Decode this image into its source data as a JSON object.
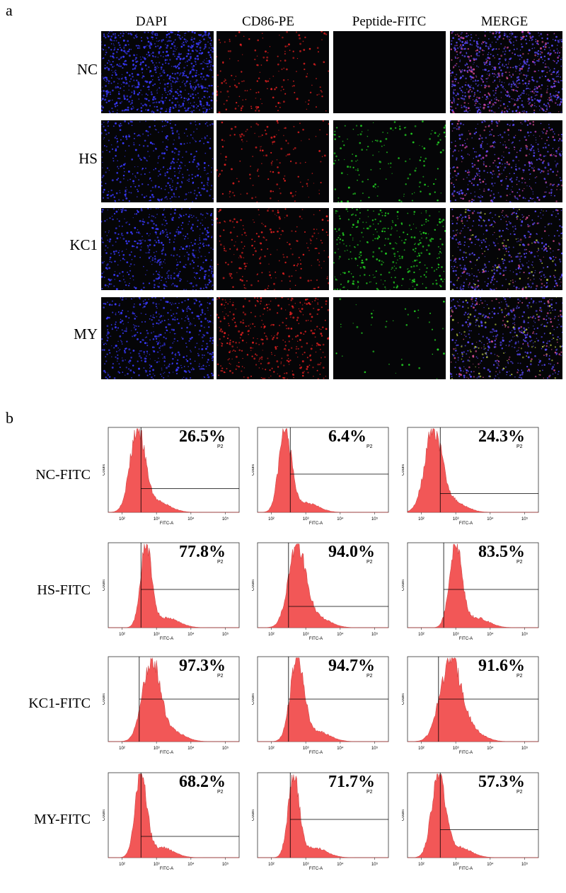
{
  "panel_a": {
    "letter": "a",
    "columns": [
      "DAPI",
      "CD86-PE",
      "Peptide-FITC",
      "MERGE"
    ],
    "rows": [
      "NC",
      "HS",
      "KC1",
      "MY"
    ],
    "stain_colors": {
      "DAPI": "#3a3aff",
      "CD86-PE": "#e02020",
      "Peptide-FITC": "#22d022",
      "MERGE": "#8a3aee"
    }
  },
  "panel_b": {
    "letter": "b",
    "rows": [
      "NC-FITC",
      "HS-FITC",
      "KC1-FITC",
      "MY-FITC"
    ],
    "x_axis_label": "FITC-A",
    "y_axis_label": "Count",
    "gate_label": "P2",
    "x_tick_labels": [
      "10²",
      "10³",
      "10⁴",
      "10⁵"
    ],
    "histogram_color": "#f25757",
    "percentages": [
      [
        "26.5%",
        "6.4%",
        "24.3%"
      ],
      [
        "77.8%",
        "94.0%",
        "83.5%"
      ],
      [
        "97.3%",
        "94.7%",
        "91.6%"
      ],
      [
        "68.2%",
        "71.7%",
        "57.3%"
      ]
    ]
  }
}
